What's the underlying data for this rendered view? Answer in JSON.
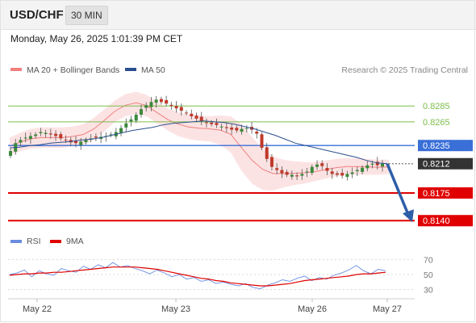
{
  "header": {
    "symbol": "USD/CHF",
    "timeframe": "30 MIN",
    "datetime": "Monday, May 26, 2025 1:01:39 PM CET"
  },
  "legend": {
    "bollinger": "MA 20 + Bollinger Bands",
    "ma50": "MA 50",
    "rsi": "RSI",
    "rsi_ma": "9MA",
    "credit": "Research © 2025 Trading Central"
  },
  "colors": {
    "bollinger": "#f08080",
    "ma50": "#2a4f8f",
    "resistance": "#7cbf4a",
    "pivot": "#3a6fd8",
    "support": "#e00000",
    "price_tag": "#333333",
    "bull_candle": "#3a8a3a",
    "bear_candle": "#c0392b",
    "arrow": "#2f5ea8",
    "rsi_line": "#6a8de0",
    "rsi_ma": "#e00000"
  },
  "chart_data": [
    {
      "type": "candlestick",
      "title": "USD/CHF",
      "timeframe": "30 MIN",
      "x_ticks": [
        "May 22",
        "May 23",
        "May 26",
        "May 27"
      ],
      "ylim": [
        0.8128,
        0.8322
      ],
      "levels": [
        {
          "label": "0.8285",
          "value": 0.8285,
          "kind": "resistance"
        },
        {
          "label": "0.8265",
          "value": 0.8265,
          "kind": "resistance"
        },
        {
          "label": "0.8235",
          "value": 0.8235,
          "kind": "pivot"
        },
        {
          "label": "0.8212",
          "value": 0.8212,
          "kind": "current"
        },
        {
          "label": "0.8175",
          "value": 0.8175,
          "kind": "support"
        },
        {
          "label": "0.8140",
          "value": 0.814,
          "kind": "support"
        }
      ],
      "close_series": [
        0.8228,
        0.8238,
        0.8242,
        0.8245,
        0.8247,
        0.8249,
        0.8252,
        0.8251,
        0.8249,
        0.8247,
        0.8244,
        0.8242,
        0.8239,
        0.8238,
        0.824,
        0.8242,
        0.8244,
        0.8245,
        0.8246,
        0.8247,
        0.8249,
        0.8252,
        0.8257,
        0.8263,
        0.8268,
        0.8274,
        0.8281,
        0.8286,
        0.829,
        0.8293,
        0.829,
        0.8288,
        0.8285,
        0.8282,
        0.8279,
        0.8276,
        0.8272,
        0.8269,
        0.8266,
        0.8264,
        0.8262,
        0.8261,
        0.8259,
        0.8257,
        0.8255,
        0.8254,
        0.8256,
        0.8257,
        0.8255,
        0.825,
        0.8232,
        0.8218,
        0.8208,
        0.8204,
        0.82,
        0.8198,
        0.8198,
        0.8196,
        0.8199,
        0.8202,
        0.8208,
        0.8211,
        0.8209,
        0.8203,
        0.8199,
        0.8198,
        0.8197,
        0.8199,
        0.8201,
        0.8204,
        0.8207,
        0.821,
        0.8212,
        0.821,
        0.8212
      ],
      "ma50_series": [
        0.8232,
        0.8233,
        0.8235,
        0.8236,
        0.8238,
        0.8239,
        0.824,
        0.8242,
        0.8243,
        0.8245,
        0.8248,
        0.8251,
        0.8254,
        0.8256,
        0.8258,
        0.8261,
        0.8263,
        0.8264,
        0.8265,
        0.8266,
        0.8265,
        0.8264,
        0.8262,
        0.8259,
        0.8256,
        0.8252,
        0.8248,
        0.8243,
        0.8238,
        0.8235,
        0.8232,
        0.8229,
        0.8226,
        0.8223,
        0.822,
        0.8216,
        0.8213,
        0.8212
      ],
      "bollinger_upper": [
        0.8245,
        0.8251,
        0.8256,
        0.8258,
        0.8258,
        0.8258,
        0.8259,
        0.8262,
        0.827,
        0.8281,
        0.8292,
        0.83,
        0.8303,
        0.8299,
        0.829,
        0.8282,
        0.8277,
        0.8274,
        0.8273,
        0.8272,
        0.8273,
        0.8272,
        0.8262,
        0.8246,
        0.8231,
        0.8221,
        0.8217,
        0.8215,
        0.8214,
        0.8214,
        0.8216,
        0.8218,
        0.8219,
        0.8219,
        0.8218,
        0.8217,
        0.8217
      ],
      "bollinger_lower": [
        0.8223,
        0.8228,
        0.8231,
        0.8232,
        0.8232,
        0.8232,
        0.8234,
        0.8236,
        0.8242,
        0.8253,
        0.8265,
        0.8272,
        0.8275,
        0.8272,
        0.8263,
        0.8254,
        0.8247,
        0.8243,
        0.8241,
        0.824,
        0.8236,
        0.8226,
        0.8203,
        0.8187,
        0.8179,
        0.8178,
        0.8182,
        0.8185,
        0.8187,
        0.819,
        0.8193,
        0.8196,
        0.8198,
        0.8198,
        0.8198,
        0.8198,
        0.8199
      ],
      "forecast": {
        "from": 0.8212,
        "to": 0.814
      }
    },
    {
      "type": "line",
      "title": "RSI",
      "series": [
        {
          "name": "RSI",
          "values": [
            50,
            52,
            56,
            47,
            55,
            51,
            49,
            58,
            55,
            53,
            61,
            57,
            63,
            59,
            66,
            60,
            62,
            58,
            55,
            51,
            56,
            52,
            47,
            50,
            44,
            46,
            41,
            43,
            38,
            40,
            37,
            35,
            38,
            33,
            31,
            36,
            39,
            43,
            41,
            45,
            48,
            42,
            46,
            44,
            49,
            52,
            56,
            62,
            55,
            51,
            57,
            55
          ]
        },
        {
          "name": "9MA",
          "values": [
            49,
            50,
            51,
            51,
            52,
            52,
            53,
            53,
            54,
            55,
            56,
            57,
            58,
            59,
            60,
            60,
            60,
            60,
            59,
            58,
            57,
            55,
            53,
            51,
            49,
            47,
            45,
            44,
            42,
            41,
            39,
            38,
            37,
            36,
            35,
            35,
            36,
            37,
            38,
            40,
            42,
            43,
            44,
            45,
            46,
            47,
            48,
            50,
            51,
            51,
            52,
            53
          ]
        }
      ],
      "yticks": [
        "70",
        "50",
        "30"
      ],
      "ylim": [
        20,
        80
      ]
    }
  ]
}
